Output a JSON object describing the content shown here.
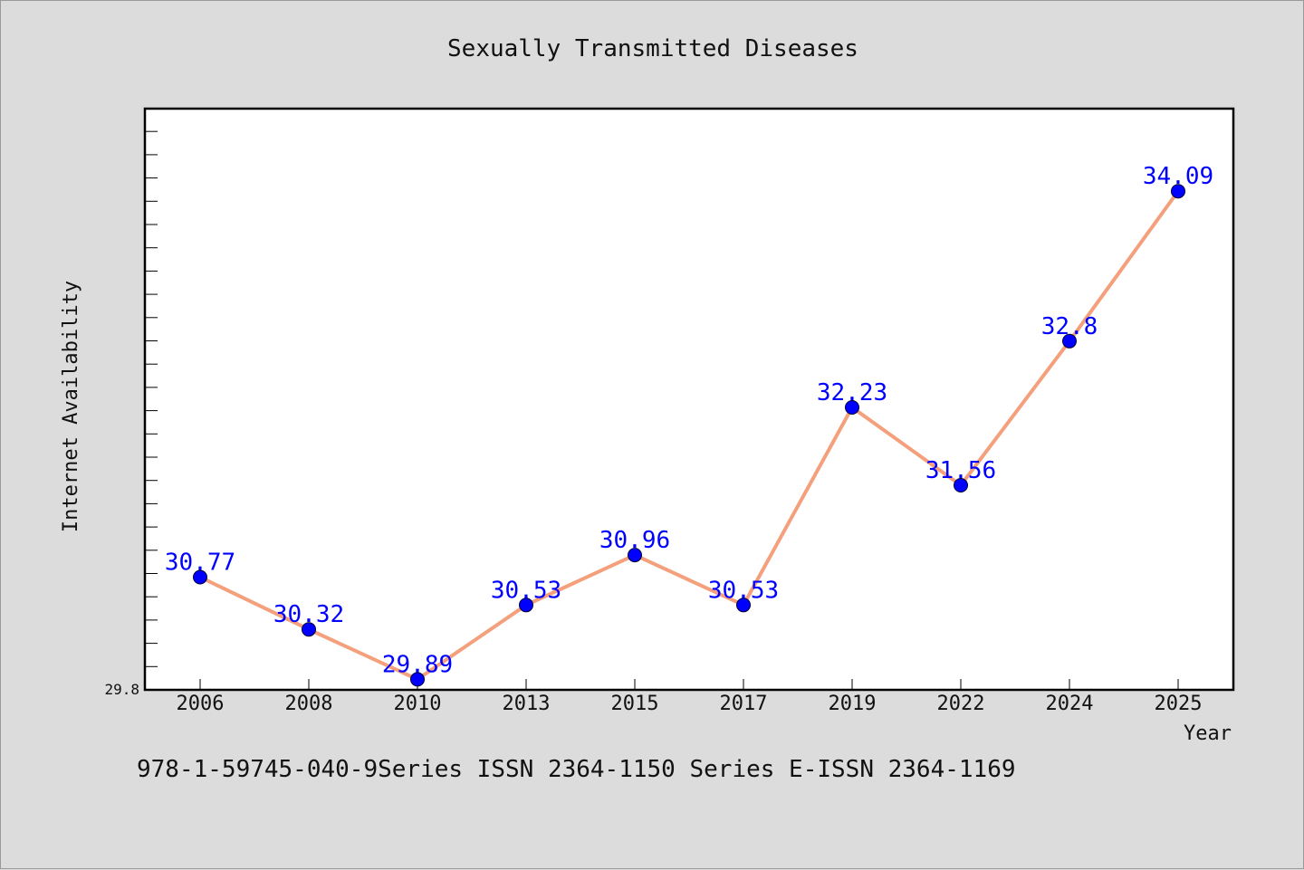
{
  "chart_data": {
    "type": "line",
    "title": "Sexually Transmitted Diseases",
    "xlabel": "Year",
    "ylabel": "Internet Availability",
    "categories": [
      "2006",
      "2008",
      "2010",
      "2013",
      "2015",
      "2017",
      "2019",
      "2022",
      "2024",
      "2025"
    ],
    "series": [
      {
        "values": [
          30.77,
          30.32,
          29.89,
          30.53,
          30.96,
          30.53,
          32.23,
          31.56,
          32.8,
          34.09
        ],
        "labels": [
          "30.77",
          "30.32",
          "29.89",
          "30.53",
          "30.96",
          "30.53",
          "32.23",
          "31.56",
          "32.8",
          "34.09"
        ]
      }
    ],
    "ymin_label": "29.8",
    "ylim": [
      29.8,
      34.8
    ],
    "grid": false,
    "line_color": "#f4a07c",
    "marker_color": "#0000ff"
  },
  "footer": {
    "text": "978-1-59745-040-9Series ISSN 2364-1150 Series E-ISSN 2364-1169"
  }
}
